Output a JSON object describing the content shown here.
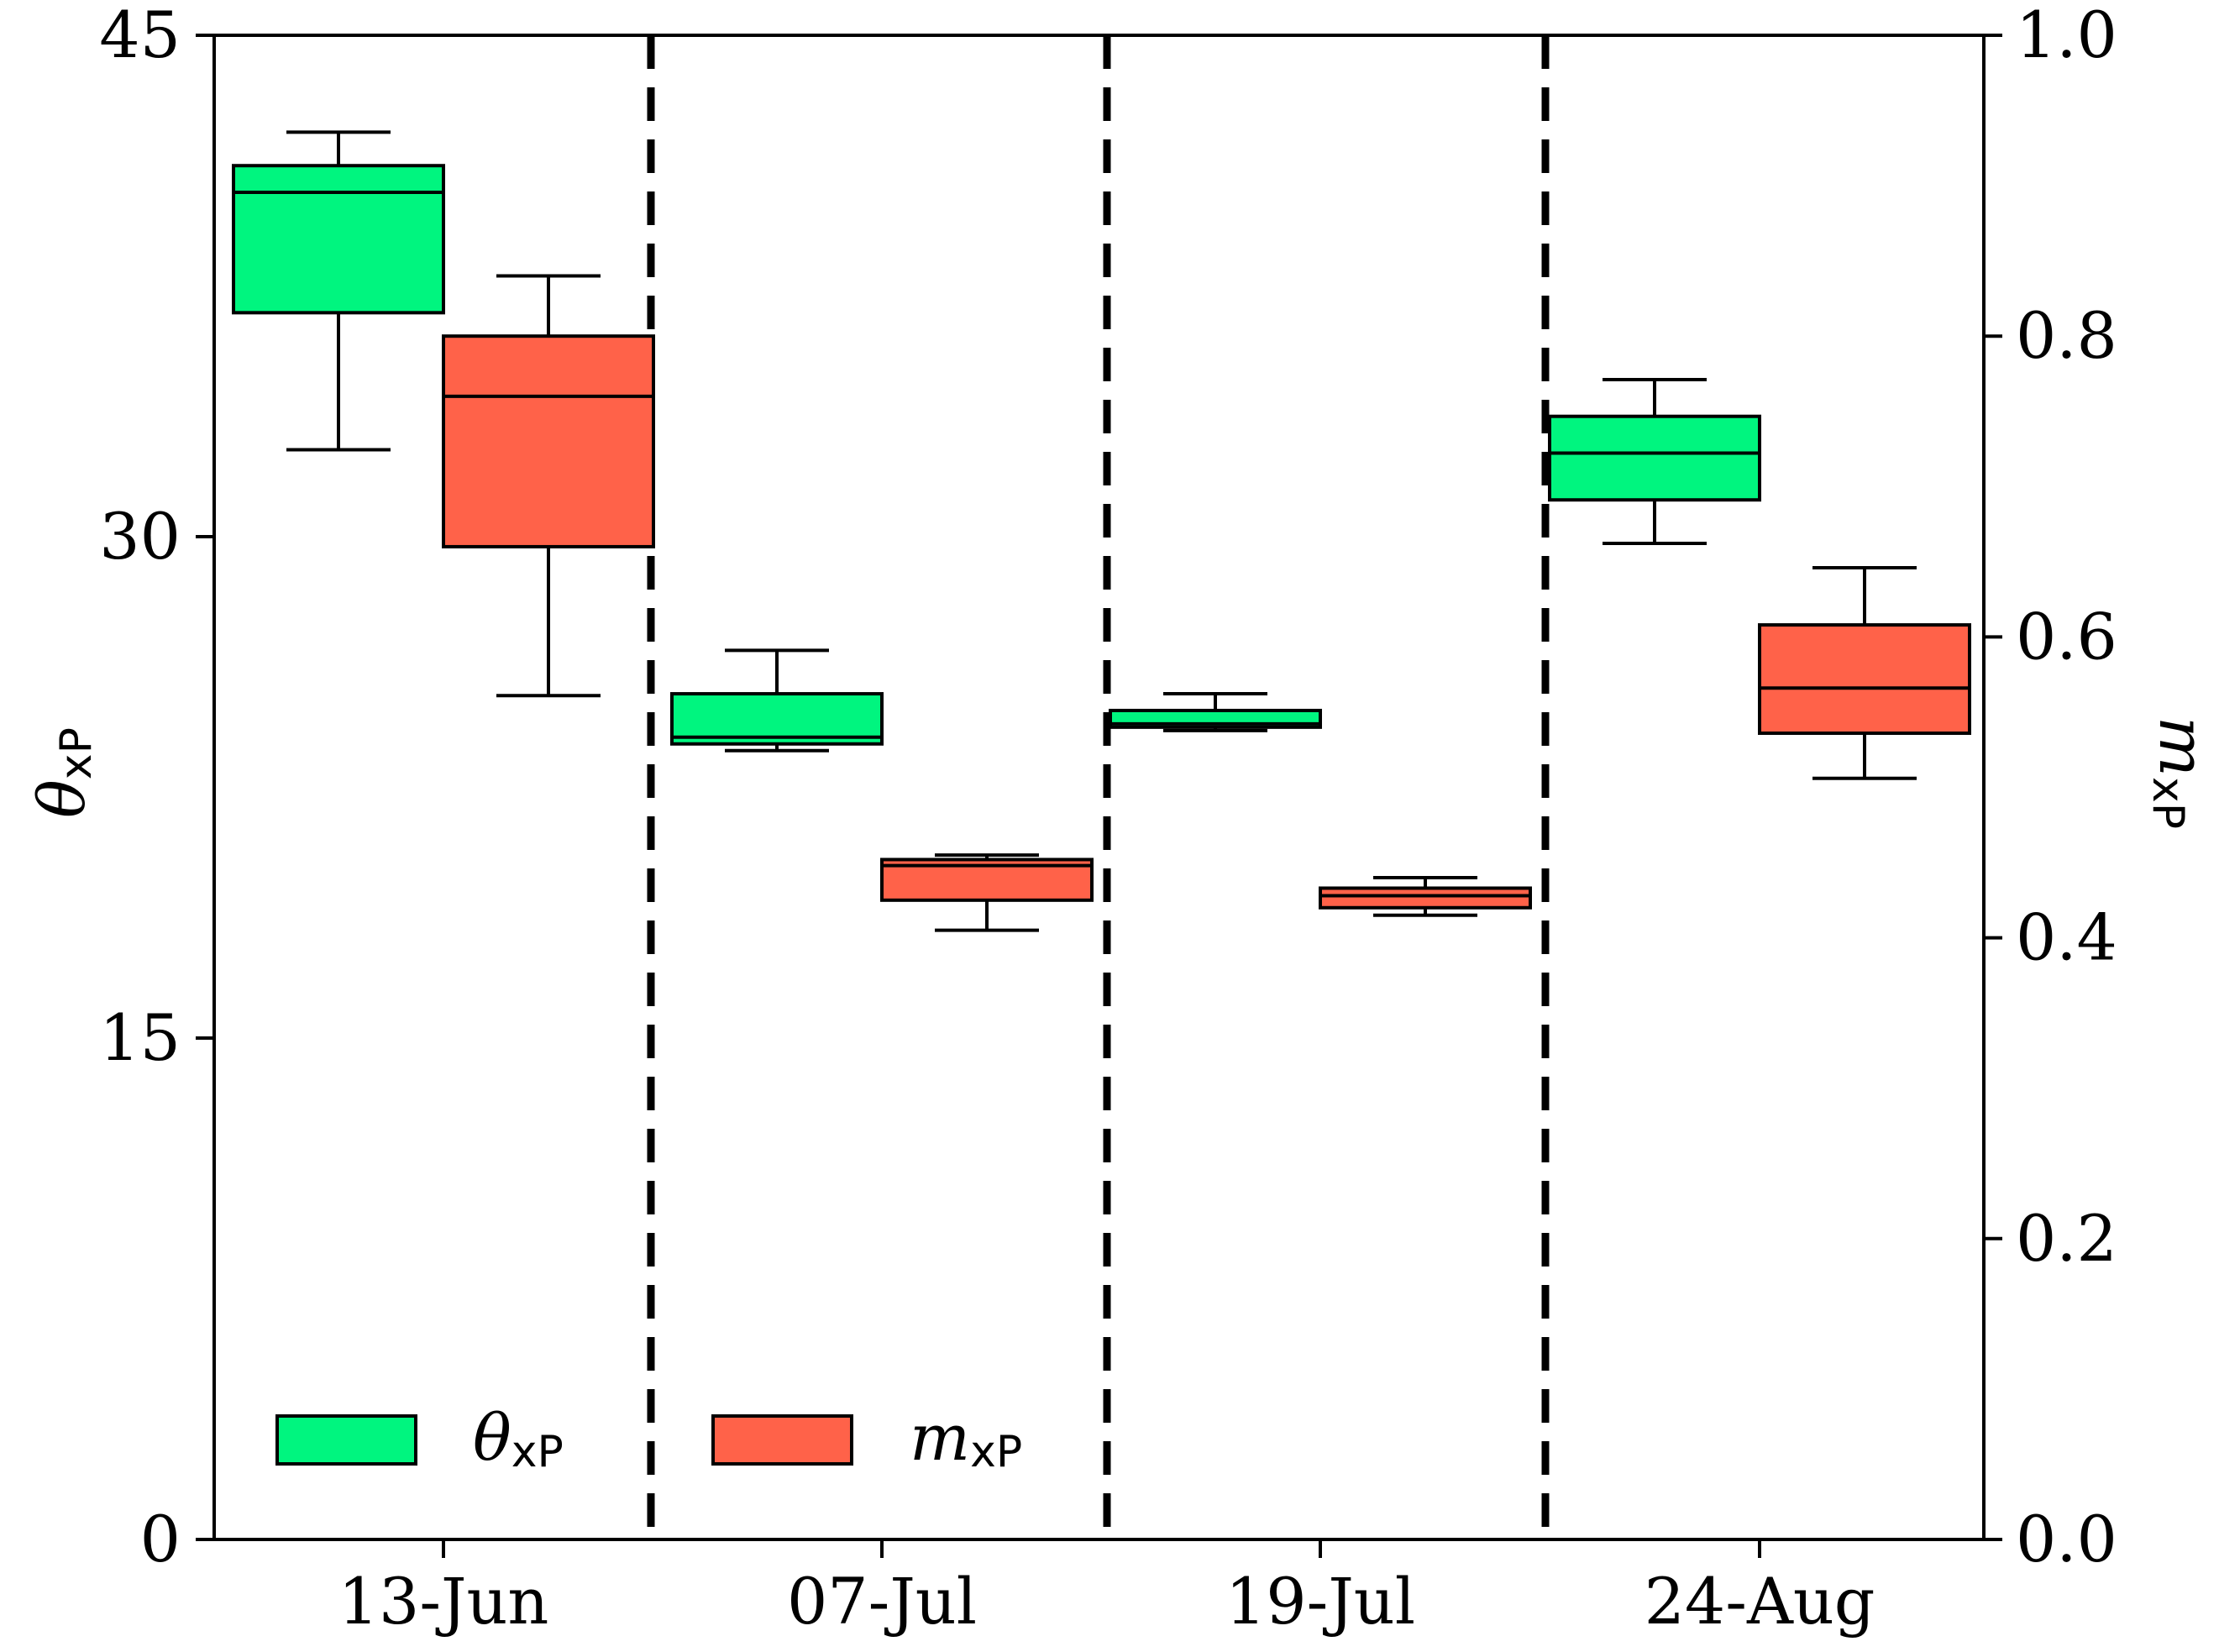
{
  "chart_data": {
    "type": "boxplot",
    "categories": [
      "13-Jun",
      "07-Jul",
      "19-Jul",
      "24-Aug"
    ],
    "left_axis": {
      "label_symbol": "θ",
      "label_subscript": "xP",
      "range": [
        0,
        45
      ],
      "ticks": [
        "0",
        "15",
        "30",
        "45"
      ],
      "tick_values": [
        0,
        15,
        30,
        45
      ]
    },
    "right_axis": {
      "label_symbol": "m",
      "label_subscript": "xP",
      "range": [
        0.0,
        1.0
      ],
      "ticks": [
        "0.0",
        "0.2",
        "0.4",
        "0.6",
        "0.8",
        "1.0"
      ],
      "tick_values": [
        0.0,
        0.2,
        0.4,
        0.6,
        0.8,
        1.0
      ]
    },
    "series": [
      {
        "name": "θxP",
        "legend_symbol": "θ",
        "legend_subscript": "xP",
        "axis": "left",
        "color": "#00f57f",
        "boxes": [
          {
            "category": "13-Jun",
            "whislo": 32.6,
            "q1": 36.7,
            "median": 40.3,
            "q3": 41.1,
            "whishi": 42.1
          },
          {
            "category": "07-Jul",
            "whislo": 23.6,
            "q1": 23.8,
            "median": 24.0,
            "q3": 25.3,
            "whishi": 26.6
          },
          {
            "category": "19-Jul",
            "whislo": 24.2,
            "q1": 24.3,
            "median": 24.4,
            "q3": 24.8,
            "whishi": 25.3
          },
          {
            "category": "24-Aug",
            "whislo": 29.8,
            "q1": 31.1,
            "median": 32.5,
            "q3": 33.6,
            "whishi": 34.7
          }
        ]
      },
      {
        "name": "mxP",
        "legend_symbol": "m",
        "legend_subscript": "xP",
        "axis": "right",
        "color": "#ff6249",
        "boxes": [
          {
            "category": "13-Jun",
            "whislo": 0.561,
            "q1": 0.66,
            "median": 0.76,
            "q3": 0.8,
            "whishi": 0.84
          },
          {
            "category": "07-Jul",
            "whislo": 0.405,
            "q1": 0.425,
            "median": 0.448,
            "q3": 0.452,
            "whishi": 0.455
          },
          {
            "category": "19-Jul",
            "whislo": 0.415,
            "q1": 0.42,
            "median": 0.428,
            "q3": 0.433,
            "whishi": 0.44
          },
          {
            "category": "24-Aug",
            "whislo": 0.506,
            "q1": 0.536,
            "median": 0.566,
            "q3": 0.608,
            "whishi": 0.646
          }
        ]
      }
    ],
    "separators": "dashed vertical lines between dates",
    "legend_position": "lower-left",
    "grid": false
  }
}
